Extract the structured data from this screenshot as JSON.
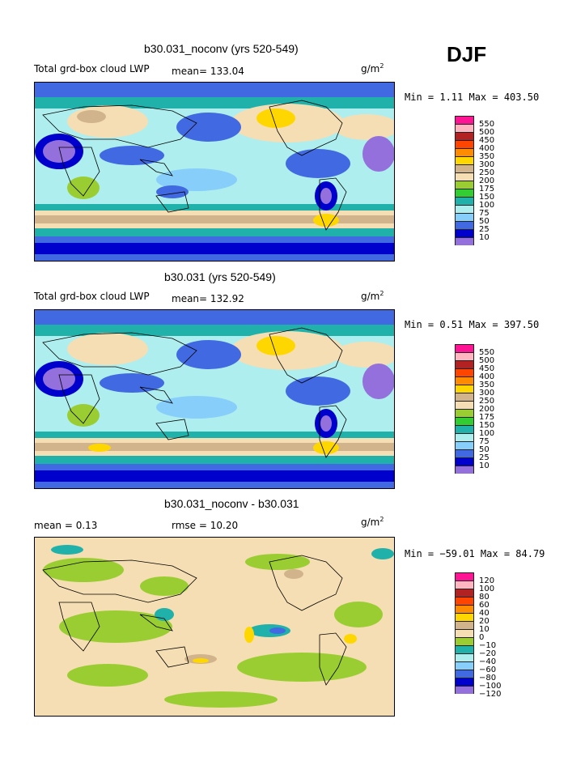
{
  "season": "DJF",
  "units": "g/m",
  "units_sup": "2",
  "panels": [
    {
      "title": "b30.031_noconv (yrs 520-549)",
      "left_label": "Total grd-box cloud LWP",
      "mean_label": "mean= 133.04",
      "minmax": "Min =   1.11 Max = 403.50",
      "palette": "abs",
      "levels": [
        "550",
        "500",
        "450",
        "400",
        "350",
        "300",
        "250",
        "200",
        "175",
        "150",
        "100",
        "75",
        "50",
        "25",
        "10"
      ]
    },
    {
      "title": "b30.031 (yrs 520-549)",
      "left_label": "Total grd-box cloud LWP",
      "mean_label": "mean= 132.92",
      "minmax": "Min =   0.51 Max = 397.50",
      "palette": "abs",
      "levels": [
        "550",
        "500",
        "450",
        "400",
        "350",
        "300",
        "250",
        "200",
        "175",
        "150",
        "100",
        "75",
        "50",
        "25",
        "10"
      ]
    },
    {
      "title": "b30.031_noconv - b30.031",
      "left_label": "mean =   0.13",
      "rmse_label": "rmse =   10.20",
      "minmax": "Min = −59.01 Max =  84.79",
      "palette": "diff",
      "levels": [
        "120",
        "100",
        "80",
        "60",
        "40",
        "20",
        "10",
        "0",
        "−10",
        "−20",
        "−40",
        "−60",
        "−80",
        "−100",
        "−120"
      ]
    }
  ],
  "colors": {
    "abs": [
      "#ff1493",
      "#ffb6c1",
      "#b22222",
      "#ff4500",
      "#ff8c00",
      "#ffd700",
      "#d2b48c",
      "#f5deb3",
      "#9acd32",
      "#32cd32",
      "#20b2aa",
      "#afeeee",
      "#87cefa",
      "#4169e1",
      "#0000cd",
      "#9370db"
    ],
    "diff": [
      "#ff1493",
      "#ffb6c1",
      "#b22222",
      "#ff4500",
      "#ff8c00",
      "#ffd700",
      "#d2b48c",
      "#f5deb3",
      "#9acd32",
      "#20b2aa",
      "#afeeee",
      "#87cefa",
      "#4169e1",
      "#0000cd",
      "#9370db"
    ]
  }
}
